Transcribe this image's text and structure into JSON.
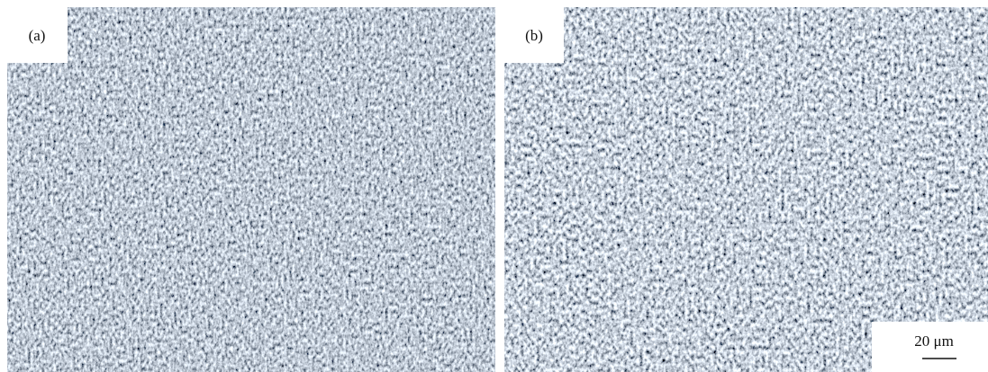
{
  "panels": [
    {
      "label": "(a)"
    },
    {
      "label": "(b)",
      "scale_bar": "20 μm"
    }
  ]
}
